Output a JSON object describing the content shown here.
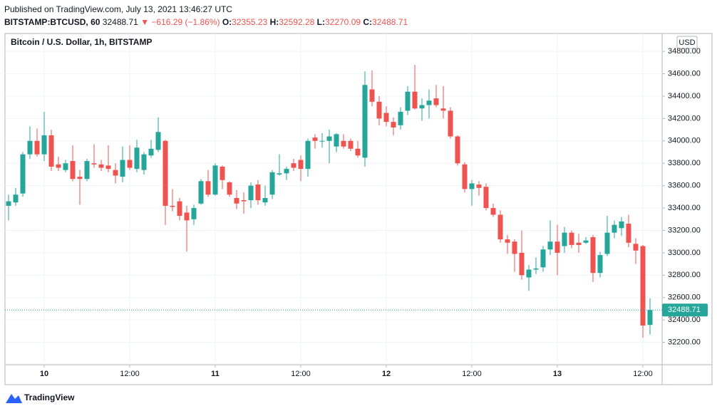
{
  "published": "Published on TradingView.com, July 13, 2021 13:46:27 UTC",
  "symbol": "BITSTAMP:BTCUSD, 60",
  "last": 32488.71,
  "change": "▼ −616.29 (−1.86%)",
  "ohlc_labels": [
    "O:",
    "H:",
    "L:",
    "C:"
  ],
  "brand": "TradingView",
  "chart_data": {
    "type": "candlestick",
    "title": "Bitcoin / U.S. Dollar, 1h, BITSTAMP",
    "currency": "USD",
    "up_color": "#26a69a",
    "down_color": "#ef5350",
    "grid": true,
    "x": [
      -5,
      -4,
      -3,
      -2,
      -1,
      0,
      1,
      2,
      3,
      4,
      5,
      6,
      7,
      8,
      9,
      10,
      11,
      12,
      13,
      14,
      15,
      16,
      17,
      18,
      19,
      20,
      21,
      22,
      23,
      24,
      25,
      26,
      27,
      28,
      29,
      30,
      31,
      32,
      33,
      34,
      35,
      36,
      37,
      38,
      39,
      40,
      41,
      42,
      43,
      44,
      45,
      46,
      47,
      48,
      49,
      50,
      51,
      52,
      53,
      54,
      55,
      56,
      57,
      58,
      59,
      60,
      61,
      62,
      63,
      64,
      65,
      66,
      67,
      68,
      69,
      70,
      71,
      72,
      73,
      74,
      75,
      76,
      77,
      78,
      79,
      80,
      81,
      82,
      83,
      84,
      85
    ],
    "open": [
      33420,
      33450,
      33530,
      33880,
      34000,
      33880,
      34050,
      33790,
      33740,
      33820,
      33680,
      33660,
      33800,
      33790,
      33780,
      33740,
      33680,
      33830,
      33750,
      33740,
      33870,
      33920,
      34000,
      33420,
      33460,
      33360,
      33300,
      33440,
      33640,
      33520,
      33770,
      33630,
      33490,
      33470,
      33470,
      33610,
      33450,
      33520,
      33700,
      33710,
      33800,
      33830,
      33750,
      34030,
      34000,
      34000,
      33950,
      34000,
      34000,
      33930,
      33850,
      34460,
      34350,
      34250,
      34170,
      34140,
      34270,
      34440,
      34290,
      34320,
      34380,
      34290,
      34270,
      34040,
      33790,
      33570,
      33610,
      33590,
      33400,
      33340,
      33120,
      33100,
      33000,
      32780,
      32850,
      32870,
      33030,
      33100,
      33060,
      33180,
      33090,
      33090,
      33140,
      32820,
      32990,
      33180,
      33220,
      33260,
      33080,
      33060,
      32355.23
    ],
    "high": [
      33520,
      33580,
      33900,
      34130,
      34110,
      34260,
      34100,
      33860,
      33830,
      33960,
      33740,
      33840,
      33970,
      33830,
      33960,
      33800,
      33950,
      33960,
      34010,
      33900,
      34010,
      34210,
      34010,
      33570,
      33490,
      33420,
      33430,
      33660,
      33740,
      33800,
      33780,
      33640,
      33560,
      33540,
      33630,
      33650,
      33600,
      33740,
      33880,
      33770,
      33840,
      33870,
      34020,
      34060,
      34070,
      34100,
      34070,
      34060,
      34020,
      34000,
      34620,
      34630,
      34400,
      34310,
      34210,
      34300,
      34490,
      34680,
      34380,
      34460,
      34500,
      34490,
      34300,
      34050,
      33810,
      33650,
      33640,
      33620,
      33440,
      33380,
      33160,
      33120,
      33200,
      32890,
      32960,
      33060,
      33290,
      33250,
      33230,
      33200,
      33170,
      33140,
      33160,
      33010,
      33330,
      33290,
      33320,
      33340,
      33130,
      33070,
      32592.28
    ],
    "low": [
      33290,
      33420,
      33500,
      33840,
      33860,
      33820,
      33730,
      33730,
      33720,
      33640,
      33430,
      33640,
      33760,
      33730,
      33720,
      33620,
      33630,
      33740,
      33720,
      33700,
      33850,
      33900,
      33250,
      33370,
      33290,
      33010,
      33250,
      33430,
      33500,
      33510,
      33570,
      33500,
      33390,
      33350,
      33400,
      33430,
      33420,
      33480,
      33690,
      33650,
      33730,
      33640,
      33680,
      33930,
      33940,
      33800,
      33900,
      33930,
      33910,
      33850,
      33770,
      34310,
      34140,
      34130,
      34050,
      34100,
      34230,
      34280,
      34180,
      34200,
      34300,
      34200,
      34020,
      33780,
      33540,
      33420,
      33510,
      33380,
      33320,
      33090,
      32990,
      32830,
      32760,
      32660,
      32810,
      32830,
      32980,
      32800,
      33000,
      33040,
      33000,
      33080,
      32740,
      32780,
      32970,
      33130,
      33150,
      33050,
      32900,
      32240,
      32270.09
    ],
    "close": [
      33460,
      33520,
      33880,
      34000,
      33880,
      34050,
      33770,
      33760,
      33800,
      33660,
      33660,
      33820,
      33790,
      33760,
      33750,
      33690,
      33830,
      33760,
      33940,
      33880,
      33930,
      34080,
      33420,
      33410,
      33330,
      33290,
      33400,
      33640,
      33520,
      33780,
      33650,
      33520,
      33440,
      33460,
      33600,
      33470,
      33490,
      33720,
      33710,
      33750,
      33760,
      33750,
      34000,
      34000,
      34000,
      34040,
      34060,
      33950,
      33930,
      33870,
      34500,
      34350,
      34200,
      34170,
      34120,
      34260,
      34440,
      34290,
      34320,
      34360,
      34320,
      34270,
      34040,
      33800,
      33570,
      33620,
      33580,
      33400,
      33340,
      33120,
      33090,
      32990,
      32800,
      32850,
      32860,
      33030,
      33100,
      33000,
      33180,
      33070,
      33070,
      33110,
      32820,
      32980,
      33180,
      33250,
      33280,
      33090,
      33020,
      32350,
      32488.71
    ],
    "xlim": [
      -5.5,
      86.7
    ],
    "xticks": [
      {
        "value": 0,
        "label": "10"
      },
      {
        "value": 12,
        "label": "12:00"
      },
      {
        "value": 24,
        "label": "11"
      },
      {
        "value": 36,
        "label": "12:00"
      },
      {
        "value": 48,
        "label": "12"
      },
      {
        "value": 60,
        "label": "12:00"
      },
      {
        "value": 72,
        "label": "13"
      },
      {
        "value": 84,
        "label": "12:00"
      }
    ],
    "ylim": [
      32000,
      34960
    ],
    "yticks": [
      {
        "value": 32200,
        "label": "32200.00"
      },
      {
        "value": 32400,
        "label": "32400.00"
      },
      {
        "value": 32600,
        "label": "32600.00"
      },
      {
        "value": 32800,
        "label": "32800.00"
      },
      {
        "value": 33000,
        "label": "33000.00"
      },
      {
        "value": 33200,
        "label": "33200.00"
      },
      {
        "value": 33400,
        "label": "33400.00"
      },
      {
        "value": 33600,
        "label": "33600.00"
      },
      {
        "value": 33800,
        "label": "33800.00"
      },
      {
        "value": 34000,
        "label": "34000.00"
      },
      {
        "value": 34200,
        "label": "34200.00"
      },
      {
        "value": 34400,
        "label": "34400.00"
      },
      {
        "value": 34600,
        "label": "34600.00"
      },
      {
        "value": 34800,
        "label": "34800.00"
      }
    ]
  }
}
